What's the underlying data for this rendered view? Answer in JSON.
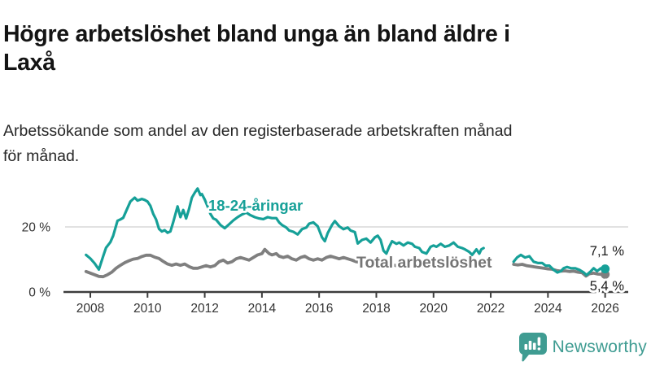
{
  "header": {
    "title_line1": "Högre arbetslöshet bland unga än bland äldre i",
    "title_line2": "Laxå",
    "subtitle_line1": "Arbetssökande som andel av den registerbaserade arbetskraften månad",
    "subtitle_line2": "för månad."
  },
  "branding": {
    "logo_text": "Newsworthy",
    "logo_color": "#3f9c92"
  },
  "chart_data": {
    "type": "line",
    "unit": "%",
    "grid": "only at 20%",
    "legend_position": "inline labels next to lines",
    "xlim": [
      2007.6,
      2026.6
    ],
    "ylim": [
      0,
      36
    ],
    "x_ticks": [
      2008,
      2010,
      2012,
      2014,
      2016,
      2018,
      2020,
      2022,
      2024,
      2026
    ],
    "y_ticks": [
      {
        "value": 0,
        "label": "0 %",
        "gridline": false
      },
      {
        "value": 20,
        "label": "20 %",
        "gridline": true
      }
    ],
    "data_gap_note": "both series have a gap between late 2021 and late 2022",
    "series": [
      {
        "name": "Total arbetslöshet",
        "label": "Total arbetslöshet",
        "color": "#7f7f7f",
        "label_color": "#757575",
        "line_width": 3.8,
        "end_value": 5.4,
        "end_label": "5,4 %",
        "segments": [
          [
            [
              2007.85,
              6.3
            ],
            [
              2008.0,
              5.8
            ],
            [
              2008.15,
              5.3
            ],
            [
              2008.3,
              4.8
            ],
            [
              2008.45,
              4.7
            ],
            [
              2008.6,
              5.3
            ],
            [
              2008.75,
              6.1
            ],
            [
              2008.9,
              7.3
            ],
            [
              2009.05,
              8.2
            ],
            [
              2009.2,
              9.0
            ],
            [
              2009.35,
              9.6
            ],
            [
              2009.5,
              10.1
            ],
            [
              2009.65,
              10.3
            ],
            [
              2009.8,
              10.9
            ],
            [
              2009.95,
              11.3
            ],
            [
              2010.1,
              11.3
            ],
            [
              2010.25,
              10.7
            ],
            [
              2010.4,
              10.3
            ],
            [
              2010.55,
              9.4
            ],
            [
              2010.7,
              8.6
            ],
            [
              2010.85,
              8.2
            ],
            [
              2011.0,
              8.6
            ],
            [
              2011.15,
              8.2
            ],
            [
              2011.3,
              8.6
            ],
            [
              2011.45,
              7.8
            ],
            [
              2011.6,
              7.3
            ],
            [
              2011.75,
              7.3
            ],
            [
              2011.9,
              7.7
            ],
            [
              2012.05,
              8.1
            ],
            [
              2012.2,
              7.7
            ],
            [
              2012.35,
              8.1
            ],
            [
              2012.5,
              9.3
            ],
            [
              2012.65,
              9.8
            ],
            [
              2012.8,
              8.9
            ],
            [
              2012.95,
              9.3
            ],
            [
              2013.1,
              10.2
            ],
            [
              2013.25,
              10.6
            ],
            [
              2013.4,
              10.2
            ],
            [
              2013.55,
              9.8
            ],
            [
              2013.7,
              10.6
            ],
            [
              2013.85,
              11.4
            ],
            [
              2014.0,
              11.8
            ],
            [
              2014.1,
              13.1
            ],
            [
              2014.25,
              11.8
            ],
            [
              2014.35,
              11.4
            ],
            [
              2014.5,
              11.8
            ],
            [
              2014.6,
              11.0
            ],
            [
              2014.75,
              10.6
            ],
            [
              2014.9,
              11.0
            ],
            [
              2015.05,
              10.2
            ],
            [
              2015.2,
              9.8
            ],
            [
              2015.35,
              10.6
            ],
            [
              2015.5,
              11.0
            ],
            [
              2015.65,
              10.2
            ],
            [
              2015.8,
              9.8
            ],
            [
              2015.95,
              10.2
            ],
            [
              2016.1,
              9.8
            ],
            [
              2016.25,
              10.6
            ],
            [
              2016.4,
              11.0
            ],
            [
              2016.55,
              10.6
            ],
            [
              2016.7,
              10.2
            ],
            [
              2016.85,
              10.6
            ],
            [
              2017.0,
              10.2
            ],
            [
              2017.15,
              9.8
            ],
            [
              2017.3,
              9.3
            ],
            [
              2017.5,
              9.0
            ],
            [
              2017.7,
              8.8
            ],
            [
              2017.9,
              8.9
            ],
            [
              2018.1,
              8.6
            ],
            [
              2018.3,
              8.2
            ],
            [
              2018.5,
              8.4
            ],
            [
              2018.7,
              8.1
            ],
            [
              2018.9,
              8.3
            ],
            [
              2019.1,
              7.9
            ],
            [
              2019.3,
              7.7
            ],
            [
              2019.5,
              7.9
            ],
            [
              2019.7,
              7.6
            ],
            [
              2019.9,
              7.8
            ],
            [
              2020.1,
              8.2
            ],
            [
              2020.3,
              8.8
            ],
            [
              2020.5,
              9.2
            ],
            [
              2020.7,
              9.0
            ],
            [
              2020.9,
              8.7
            ],
            [
              2021.1,
              8.4
            ],
            [
              2021.3,
              8.1
            ],
            [
              2021.5,
              7.9
            ],
            [
              2021.75,
              7.8
            ]
          ],
          [
            [
              2022.8,
              8.5
            ],
            [
              2022.95,
              8.3
            ],
            [
              2023.1,
              8.5
            ],
            [
              2023.25,
              8.1
            ],
            [
              2023.4,
              7.9
            ],
            [
              2023.55,
              7.7
            ],
            [
              2023.7,
              7.5
            ],
            [
              2023.85,
              7.3
            ],
            [
              2024.0,
              7.1
            ],
            [
              2024.15,
              7.0
            ],
            [
              2024.3,
              6.6
            ],
            [
              2024.45,
              6.4
            ],
            [
              2024.6,
              6.5
            ],
            [
              2024.75,
              6.3
            ],
            [
              2024.9,
              6.4
            ],
            [
              2025.05,
              6.1
            ],
            [
              2025.2,
              5.9
            ],
            [
              2025.33,
              4.9
            ],
            [
              2025.45,
              5.6
            ],
            [
              2025.6,
              5.8
            ],
            [
              2025.75,
              5.5
            ],
            [
              2025.9,
              5.4
            ],
            [
              2026.0,
              5.4
            ]
          ]
        ]
      },
      {
        "name": "18-24-åringar",
        "label": "18-24-åringar",
        "color": "#16a098",
        "label_color": "#16a098",
        "line_width": 3.2,
        "end_value": 7.1,
        "end_label": "7,1 %",
        "segments": [
          [
            [
              2007.85,
              11.4
            ],
            [
              2008.0,
              10.3
            ],
            [
              2008.15,
              8.8
            ],
            [
              2008.3,
              6.9
            ],
            [
              2008.45,
              11.0
            ],
            [
              2008.55,
              13.6
            ],
            [
              2008.7,
              15.3
            ],
            [
              2008.8,
              17.3
            ],
            [
              2008.95,
              21.9
            ],
            [
              2009.05,
              22.3
            ],
            [
              2009.15,
              22.8
            ],
            [
              2009.25,
              24.8
            ],
            [
              2009.4,
              27.8
            ],
            [
              2009.55,
              29.0
            ],
            [
              2009.65,
              28.1
            ],
            [
              2009.8,
              28.6
            ],
            [
              2009.9,
              28.3
            ],
            [
              2010.0,
              27.8
            ],
            [
              2010.1,
              26.5
            ],
            [
              2010.2,
              24.0
            ],
            [
              2010.3,
              22.3
            ],
            [
              2010.4,
              19.4
            ],
            [
              2010.5,
              18.6
            ],
            [
              2010.6,
              19.0
            ],
            [
              2010.7,
              18.2
            ],
            [
              2010.8,
              18.6
            ],
            [
              2010.9,
              21.5
            ],
            [
              2011.05,
              26.3
            ],
            [
              2011.15,
              23.0
            ],
            [
              2011.25,
              25.2
            ],
            [
              2011.35,
              22.6
            ],
            [
              2011.45,
              25.5
            ],
            [
              2011.55,
              29.0
            ],
            [
              2011.65,
              30.5
            ],
            [
              2011.75,
              31.8
            ],
            [
              2011.85,
              29.8
            ],
            [
              2011.9,
              30.1
            ],
            [
              2012.0,
              28.4
            ],
            [
              2012.1,
              26.3
            ],
            [
              2012.2,
              24.0
            ],
            [
              2012.3,
              22.6
            ],
            [
              2012.4,
              22.2
            ],
            [
              2012.55,
              20.6
            ],
            [
              2012.7,
              19.6
            ],
            [
              2012.85,
              20.8
            ],
            [
              2013.0,
              22.0
            ],
            [
              2013.15,
              23.0
            ],
            [
              2013.3,
              23.8
            ],
            [
              2013.45,
              24.4
            ],
            [
              2013.6,
              23.6
            ],
            [
              2013.75,
              23.0
            ],
            [
              2013.9,
              22.6
            ],
            [
              2014.05,
              22.4
            ],
            [
              2014.2,
              23.0
            ],
            [
              2014.35,
              22.7
            ],
            [
              2014.5,
              22.7
            ],
            [
              2014.6,
              21.4
            ],
            [
              2014.7,
              20.6
            ],
            [
              2014.85,
              19.8
            ],
            [
              2014.95,
              18.9
            ],
            [
              2015.1,
              18.5
            ],
            [
              2015.25,
              17.7
            ],
            [
              2015.4,
              19.3
            ],
            [
              2015.55,
              19.8
            ],
            [
              2015.65,
              21.0
            ],
            [
              2015.8,
              21.4
            ],
            [
              2015.95,
              20.2
            ],
            [
              2016.1,
              16.8
            ],
            [
              2016.2,
              15.6
            ],
            [
              2016.3,
              18.1
            ],
            [
              2016.45,
              20.6
            ],
            [
              2016.55,
              21.8
            ],
            [
              2016.7,
              20.2
            ],
            [
              2016.85,
              19.3
            ],
            [
              2017.0,
              19.8
            ],
            [
              2017.1,
              18.9
            ],
            [
              2017.25,
              18.4
            ],
            [
              2017.35,
              14.9
            ],
            [
              2017.5,
              16.0
            ],
            [
              2017.65,
              16.4
            ],
            [
              2017.8,
              15.2
            ],
            [
              2017.95,
              16.8
            ],
            [
              2018.05,
              17.3
            ],
            [
              2018.15,
              16.0
            ],
            [
              2018.25,
              12.7
            ],
            [
              2018.35,
              11.8
            ],
            [
              2018.45,
              13.9
            ],
            [
              2018.55,
              15.6
            ],
            [
              2018.7,
              14.8
            ],
            [
              2018.8,
              15.2
            ],
            [
              2018.95,
              14.3
            ],
            [
              2019.1,
              15.2
            ],
            [
              2019.25,
              14.8
            ],
            [
              2019.35,
              13.9
            ],
            [
              2019.5,
              13.5
            ],
            [
              2019.6,
              12.3
            ],
            [
              2019.75,
              11.8
            ],
            [
              2019.9,
              13.9
            ],
            [
              2020.0,
              14.3
            ],
            [
              2020.1,
              13.9
            ],
            [
              2020.25,
              14.8
            ],
            [
              2020.4,
              13.9
            ],
            [
              2020.55,
              14.3
            ],
            [
              2020.7,
              15.2
            ],
            [
              2020.85,
              13.9
            ],
            [
              2021.0,
              13.5
            ],
            [
              2021.1,
              13.1
            ],
            [
              2021.25,
              12.3
            ],
            [
              2021.35,
              11.4
            ],
            [
              2021.5,
              13.1
            ],
            [
              2021.6,
              11.8
            ],
            [
              2021.67,
              13.1
            ],
            [
              2021.75,
              13.5
            ]
          ],
          [
            [
              2022.8,
              9.3
            ],
            [
              2022.92,
              10.6
            ],
            [
              2023.05,
              11.4
            ],
            [
              2023.2,
              10.6
            ],
            [
              2023.35,
              11.0
            ],
            [
              2023.5,
              9.3
            ],
            [
              2023.65,
              8.9
            ],
            [
              2023.8,
              8.9
            ],
            [
              2023.92,
              8.1
            ],
            [
              2024.05,
              8.1
            ],
            [
              2024.2,
              6.8
            ],
            [
              2024.33,
              6.0
            ],
            [
              2024.45,
              6.4
            ],
            [
              2024.55,
              7.3
            ],
            [
              2024.67,
              7.7
            ],
            [
              2024.8,
              7.3
            ],
            [
              2024.95,
              7.3
            ],
            [
              2025.1,
              6.8
            ],
            [
              2025.25,
              6.0
            ],
            [
              2025.35,
              5.2
            ],
            [
              2025.5,
              6.4
            ],
            [
              2025.6,
              7.3
            ],
            [
              2025.72,
              6.4
            ],
            [
              2025.85,
              7.3
            ],
            [
              2026.0,
              7.1
            ]
          ]
        ]
      }
    ]
  }
}
